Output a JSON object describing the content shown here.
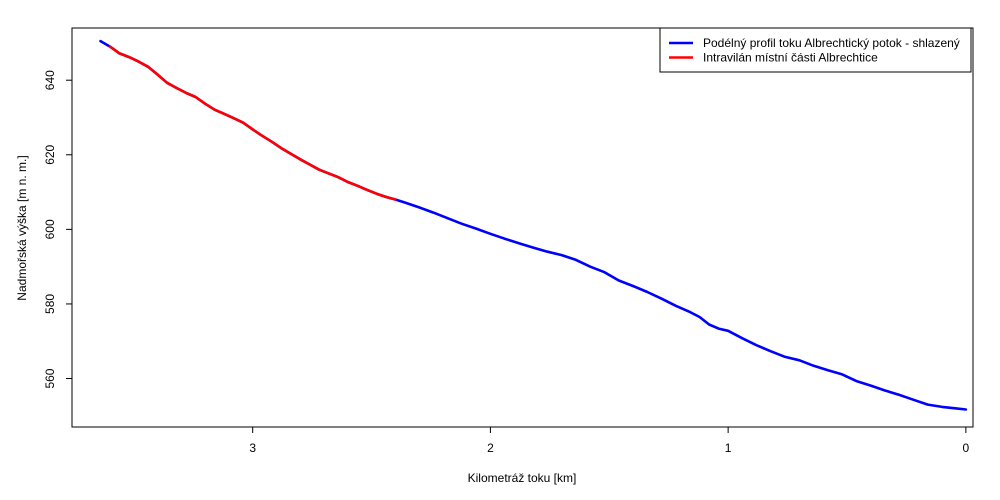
{
  "chart_data": {
    "type": "line",
    "title": "",
    "xlabel": "Kilometráž toku [km]",
    "ylabel": "Nadmořská výška [m n. m.]",
    "xlim": [
      3.76,
      -0.03
    ],
    "ylim": [
      547,
      654
    ],
    "x_reversed": true,
    "x_ticks": [
      3,
      2,
      1,
      0
    ],
    "y_ticks": [
      560,
      580,
      600,
      620,
      640
    ],
    "legend_position": "top-right",
    "grid": false,
    "series": [
      {
        "name": "Podélný profil toku Albrechtický potok - shlazený",
        "color": "#0000FF",
        "x": [
          3.64,
          3.6,
          3.56,
          3.52,
          3.48,
          3.44,
          3.4,
          3.36,
          3.32,
          3.28,
          3.24,
          3.2,
          3.16,
          3.12,
          3.08,
          3.04,
          3.0,
          2.96,
          2.92,
          2.88,
          2.84,
          2.8,
          2.76,
          2.72,
          2.68,
          2.64,
          2.6,
          2.56,
          2.52,
          2.48,
          2.44,
          2.4,
          2.36,
          2.3,
          2.24,
          2.18,
          2.12,
          2.06,
          2.0,
          1.94,
          1.88,
          1.82,
          1.76,
          1.7,
          1.64,
          1.58,
          1.52,
          1.46,
          1.4,
          1.34,
          1.28,
          1.22,
          1.16,
          1.12,
          1.08,
          1.04,
          1.0,
          0.94,
          0.88,
          0.82,
          0.76,
          0.7,
          0.64,
          0.58,
          0.52,
          0.46,
          0.4,
          0.34,
          0.28,
          0.22,
          0.16,
          0.1,
          0.04,
          0.0
        ],
        "y": [
          650.5,
          649.0,
          647.2,
          646.2,
          645.0,
          643.6,
          641.5,
          639.3,
          637.9,
          636.6,
          635.5,
          633.7,
          632.1,
          631.0,
          629.8,
          628.6,
          626.8,
          625.1,
          623.5,
          621.8,
          620.3,
          618.8,
          617.4,
          616.0,
          615.0,
          614.0,
          612.7,
          611.7,
          610.6,
          609.6,
          608.7,
          608.0,
          607.2,
          605.9,
          604.5,
          603.0,
          601.5,
          600.2,
          598.8,
          597.5,
          596.3,
          595.1,
          594.0,
          593.1,
          591.8,
          590.0,
          588.5,
          586.3,
          584.8,
          583.2,
          581.4,
          579.5,
          577.8,
          576.5,
          574.5,
          573.4,
          572.8,
          570.8,
          568.9,
          567.3,
          565.8,
          564.9,
          563.4,
          562.2,
          561.1,
          559.3,
          558.1,
          556.8,
          555.6,
          554.3,
          553.0,
          552.4,
          552.0,
          551.7
        ]
      },
      {
        "name": "Intravilán místní části Albrechtice",
        "color": "#FF0000",
        "x": [
          3.6,
          3.56,
          3.52,
          3.48,
          3.44,
          3.4,
          3.36,
          3.32,
          3.28,
          3.24,
          3.2,
          3.16,
          3.12,
          3.08,
          3.04,
          3.0,
          2.96,
          2.92,
          2.88,
          2.84,
          2.8,
          2.76,
          2.72,
          2.68,
          2.64,
          2.6,
          2.56,
          2.52,
          2.48,
          2.44,
          2.4
        ],
        "y": [
          649.0,
          647.2,
          646.2,
          645.0,
          643.6,
          641.5,
          639.3,
          637.9,
          636.6,
          635.5,
          633.7,
          632.1,
          631.0,
          629.8,
          628.6,
          626.8,
          625.1,
          623.5,
          621.8,
          620.3,
          618.8,
          617.4,
          616.0,
          615.0,
          614.0,
          612.7,
          611.7,
          610.6,
          609.6,
          608.7,
          608.0
        ]
      }
    ]
  }
}
